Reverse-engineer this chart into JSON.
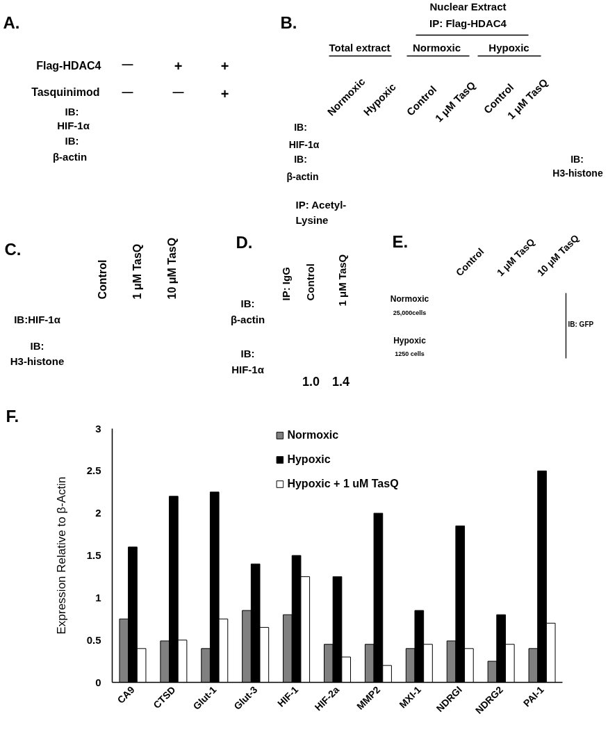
{
  "chart_data": [
    {
      "type": "other",
      "title": "A.",
      "annotations": [
        "Flag-HDAC4",
        "—",
        "+",
        "+",
        "Tasquinimod",
        "—",
        "—",
        "+",
        "IB:",
        "HIF-1α",
        "IB:",
        "β-actin"
      ]
    },
    {
      "type": "other",
      "title": "B.",
      "annotations": [
        "Nuclear Extract",
        "IP: Flag-HDAC4",
        "Total extract",
        "Normoxic",
        "Hypoxic",
        "Normoxic",
        "Hypoxic",
        "Control",
        "1 μM TasQ",
        "Control",
        "1 μM TasQ",
        "IB:",
        "HIF-1α",
        "IB:",
        "β-actin",
        "IB:",
        "H3-histone"
      ]
    },
    {
      "type": "other",
      "title": "C.",
      "annotations": [
        "Control",
        "1 μM TasQ",
        "10 μM TasQ",
        "IB:HIF-1α",
        "IB:",
        "H3-histone"
      ]
    },
    {
      "type": "other",
      "title": "D.",
      "annotations": [
        "IP: Acetyl-",
        "Lysine",
        "IP: IgG",
        "Control",
        "1 μM TasQ",
        "IB:",
        "β-actin",
        "IB:",
        "HIF-1α",
        "1.0",
        "1.4"
      ]
    },
    {
      "type": "other",
      "title": "E.",
      "annotations": [
        "Control",
        "1 μM TasQ",
        "10 μM TasQ",
        "Normoxic",
        "25,000cells",
        "Hypoxic",
        "1250 cells",
        "IB: GFP"
      ]
    },
    {
      "type": "bar",
      "title": "F.",
      "categories": [
        "CA9",
        "CTSD",
        "Glut-1",
        "Glut-3",
        "HIF-1",
        "HIF-2a",
        "MMP2",
        "MXI-1",
        "NDRGI",
        "NDRG2",
        "PAI-1"
      ],
      "ylabel": "Expression Relative to β-Actin",
      "ylim": [
        0,
        3
      ],
      "yticks": [
        0,
        0.5,
        1,
        1.5,
        2,
        2.5,
        3
      ],
      "legend": "top",
      "series": [
        {
          "name": "Normoxic",
          "color": "#808080",
          "values": [
            0.75,
            0.49,
            0.4,
            0.85,
            0.8,
            0.45,
            0.45,
            0.4,
            0.49,
            0.25,
            0.4
          ]
        },
        {
          "name": "Hypoxic",
          "color": "#000000",
          "values": [
            1.6,
            2.2,
            2.25,
            1.4,
            1.5,
            1.25,
            2.0,
            0.85,
            1.85,
            0.8,
            2.5
          ]
        },
        {
          "name": "Hypoxic + 1 uM TasQ",
          "color": "#ffffff",
          "values": [
            0.4,
            0.5,
            0.75,
            0.65,
            1.25,
            0.3,
            0.2,
            0.45,
            0.4,
            0.45,
            0.7
          ]
        }
      ]
    }
  ]
}
